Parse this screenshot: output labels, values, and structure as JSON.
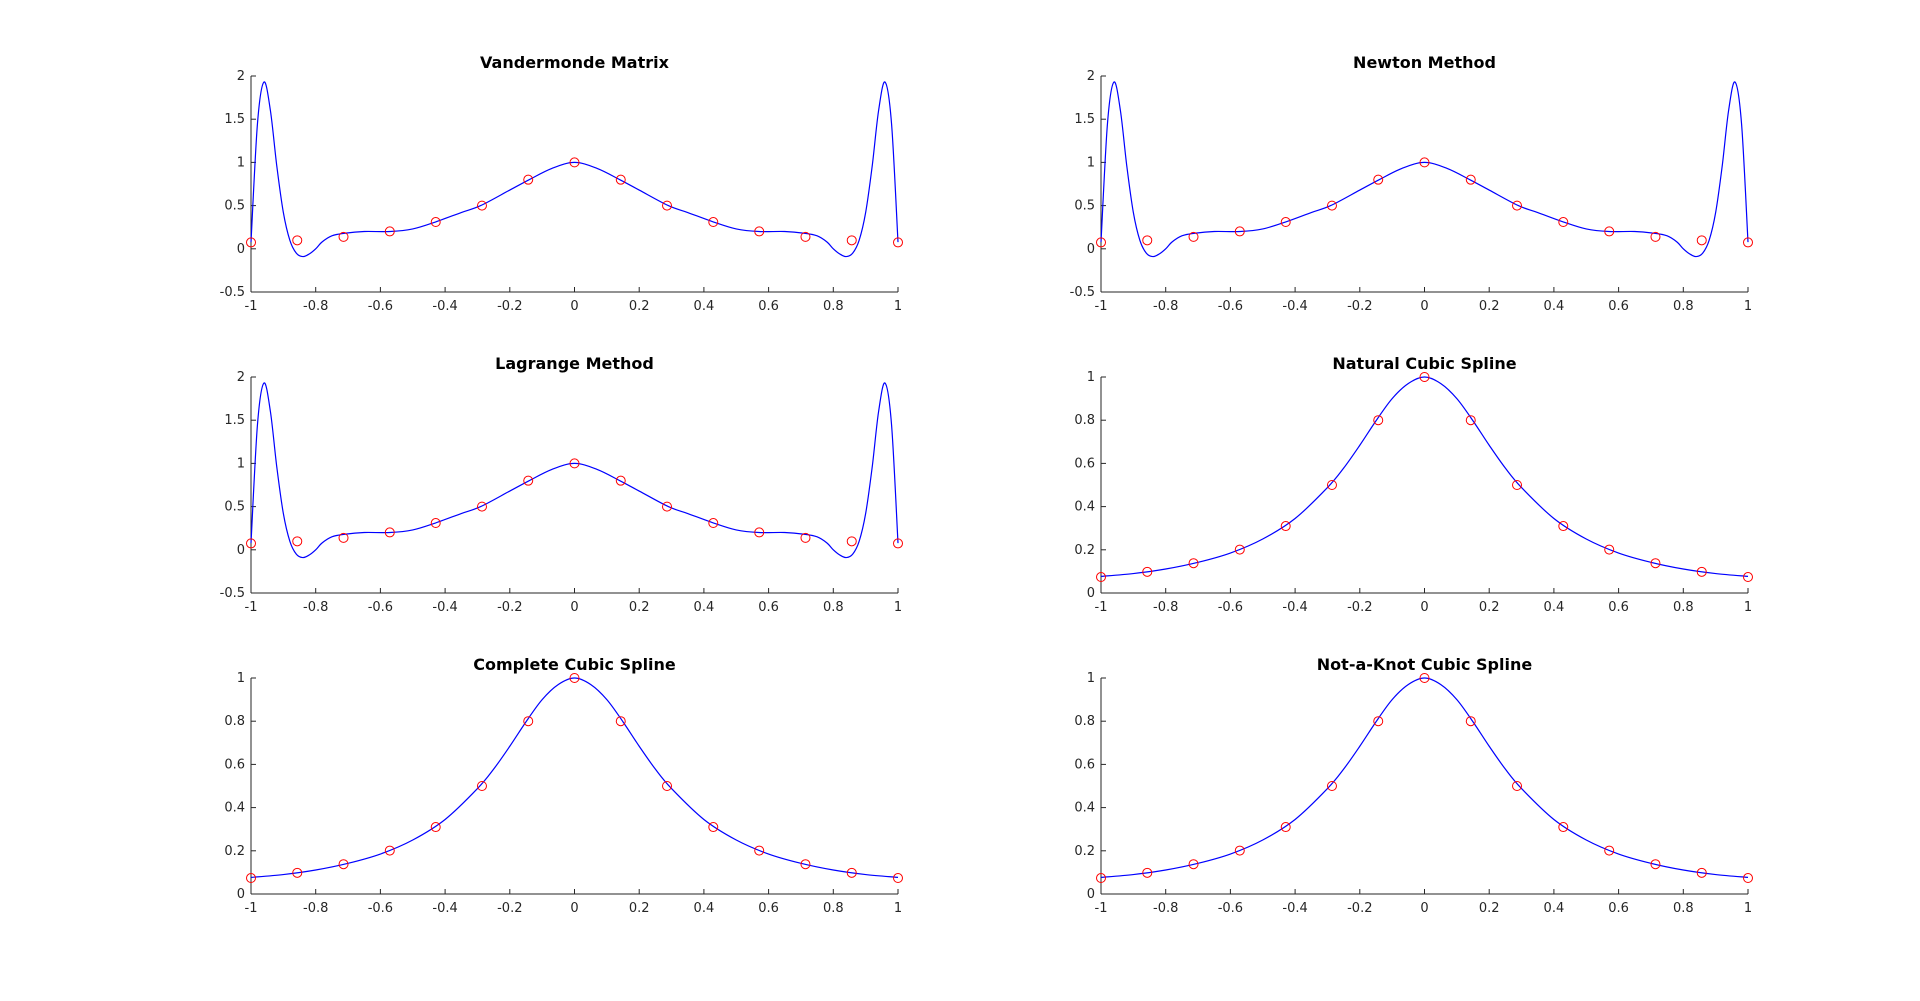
{
  "colors": {
    "curve": "#0000ff",
    "marker": "#ff0000",
    "axis": "#262626"
  },
  "chart_data": [
    {
      "type": "line",
      "title": "Vandermonde Matrix",
      "method": "poly",
      "xlim": [
        -1,
        1
      ],
      "ylim": [
        -0.5,
        2
      ],
      "xticks": [
        "-1",
        "-0.8",
        "-0.6",
        "-0.4",
        "-0.2",
        "0",
        "0.2",
        "0.4",
        "0.6",
        "0.8",
        "1"
      ],
      "yticks": [
        "-0.5",
        "0",
        "0.5",
        "1",
        "1.5",
        "2"
      ],
      "series": [
        {
          "style": "line",
          "x": [
            -1,
            -0.98,
            -0.96,
            -0.94,
            -0.92,
            -0.9,
            -0.88,
            -0.86,
            -0.84,
            -0.82,
            -0.8,
            -0.78,
            -0.75,
            -0.71,
            -0.65,
            -0.57,
            -0.5,
            -0.43,
            -0.35,
            -0.29,
            -0.2,
            -0.14,
            -0.07,
            0,
            0.07,
            0.14,
            0.2,
            0.29,
            0.35,
            0.43,
            0.5,
            0.57,
            0.65,
            0.71,
            0.75,
            0.78,
            0.8,
            0.82,
            0.84,
            0.86,
            0.88,
            0.9,
            0.92,
            0.94,
            0.96,
            0.98,
            1
          ],
          "y": [
            0.077,
            1.45,
            1.93,
            1.6,
            0.95,
            0.42,
            0.1,
            -0.05,
            -0.09,
            -0.06,
            0.0,
            0.08,
            0.15,
            0.18,
            0.2,
            0.2,
            0.23,
            0.31,
            0.42,
            0.5,
            0.68,
            0.8,
            0.93,
            1.0,
            0.93,
            0.8,
            0.68,
            0.5,
            0.42,
            0.31,
            0.23,
            0.2,
            0.2,
            0.18,
            0.15,
            0.08,
            0.0,
            -0.06,
            -0.09,
            -0.05,
            0.1,
            0.42,
            0.95,
            1.6,
            1.93,
            1.45,
            0.077
          ]
        },
        {
          "style": "markers",
          "x": [
            -1,
            -0.857,
            -0.714,
            -0.571,
            -0.429,
            -0.286,
            -0.143,
            0,
            0.143,
            0.286,
            0.429,
            0.571,
            0.714,
            0.857,
            1
          ],
          "y": [
            0.074,
            0.098,
            0.138,
            0.201,
            0.31,
            0.5,
            0.8,
            1.0,
            0.8,
            0.5,
            0.31,
            0.201,
            0.138,
            0.098,
            0.074
          ]
        }
      ]
    },
    {
      "type": "line",
      "title": "Newton Method",
      "method": "poly",
      "xlim": [
        -1,
        1
      ],
      "ylim": [
        -0.5,
        2
      ],
      "xticks": [
        "-1",
        "-0.8",
        "-0.6",
        "-0.4",
        "-0.2",
        "0",
        "0.2",
        "0.4",
        "0.6",
        "0.8",
        "1"
      ],
      "yticks": [
        "-0.5",
        "0",
        "0.5",
        "1",
        "1.5",
        "2"
      ],
      "series": [
        {
          "style": "line",
          "x": [
            -1,
            -0.98,
            -0.96,
            -0.94,
            -0.92,
            -0.9,
            -0.88,
            -0.86,
            -0.84,
            -0.82,
            -0.8,
            -0.78,
            -0.75,
            -0.71,
            -0.65,
            -0.57,
            -0.5,
            -0.43,
            -0.35,
            -0.29,
            -0.2,
            -0.14,
            -0.07,
            0,
            0.07,
            0.14,
            0.2,
            0.29,
            0.35,
            0.43,
            0.5,
            0.57,
            0.65,
            0.71,
            0.75,
            0.78,
            0.8,
            0.82,
            0.84,
            0.86,
            0.88,
            0.9,
            0.92,
            0.94,
            0.96,
            0.98,
            1
          ],
          "y": [
            0.077,
            1.45,
            1.93,
            1.6,
            0.95,
            0.42,
            0.1,
            -0.05,
            -0.09,
            -0.06,
            0.0,
            0.08,
            0.15,
            0.18,
            0.2,
            0.2,
            0.23,
            0.31,
            0.42,
            0.5,
            0.68,
            0.8,
            0.93,
            1.0,
            0.93,
            0.8,
            0.68,
            0.5,
            0.42,
            0.31,
            0.23,
            0.2,
            0.2,
            0.18,
            0.15,
            0.08,
            0.0,
            -0.06,
            -0.09,
            -0.05,
            0.1,
            0.42,
            0.95,
            1.6,
            1.93,
            1.45,
            0.077
          ]
        },
        {
          "style": "markers",
          "x": [
            -1,
            -0.857,
            -0.714,
            -0.571,
            -0.429,
            -0.286,
            -0.143,
            0,
            0.143,
            0.286,
            0.429,
            0.571,
            0.714,
            0.857,
            1
          ],
          "y": [
            0.074,
            0.098,
            0.138,
            0.201,
            0.31,
            0.5,
            0.8,
            1.0,
            0.8,
            0.5,
            0.31,
            0.201,
            0.138,
            0.098,
            0.074
          ]
        }
      ]
    },
    {
      "type": "line",
      "title": "Lagrange Method",
      "method": "poly",
      "xlim": [
        -1,
        1
      ],
      "ylim": [
        -0.5,
        2
      ],
      "xticks": [
        "-1",
        "-0.8",
        "-0.6",
        "-0.4",
        "-0.2",
        "0",
        "0.2",
        "0.4",
        "0.6",
        "0.8",
        "1"
      ],
      "yticks": [
        "-0.5",
        "0",
        "0.5",
        "1",
        "1.5",
        "2"
      ],
      "series": [
        {
          "style": "line",
          "x": [
            -1,
            -0.98,
            -0.96,
            -0.94,
            -0.92,
            -0.9,
            -0.88,
            -0.86,
            -0.84,
            -0.82,
            -0.8,
            -0.78,
            -0.75,
            -0.71,
            -0.65,
            -0.57,
            -0.5,
            -0.43,
            -0.35,
            -0.29,
            -0.2,
            -0.14,
            -0.07,
            0,
            0.07,
            0.14,
            0.2,
            0.29,
            0.35,
            0.43,
            0.5,
            0.57,
            0.65,
            0.71,
            0.75,
            0.78,
            0.8,
            0.82,
            0.84,
            0.86,
            0.88,
            0.9,
            0.92,
            0.94,
            0.96,
            0.98,
            1
          ],
          "y": [
            0.077,
            1.45,
            1.93,
            1.6,
            0.95,
            0.42,
            0.1,
            -0.05,
            -0.09,
            -0.06,
            0.0,
            0.08,
            0.15,
            0.18,
            0.2,
            0.2,
            0.23,
            0.31,
            0.42,
            0.5,
            0.68,
            0.8,
            0.93,
            1.0,
            0.93,
            0.8,
            0.68,
            0.5,
            0.42,
            0.31,
            0.23,
            0.2,
            0.2,
            0.18,
            0.15,
            0.08,
            0.0,
            -0.06,
            -0.09,
            -0.05,
            0.1,
            0.42,
            0.95,
            1.6,
            1.93,
            1.45,
            0.077
          ]
        },
        {
          "style": "markers",
          "x": [
            -1,
            -0.857,
            -0.714,
            -0.571,
            -0.429,
            -0.286,
            -0.143,
            0,
            0.143,
            0.286,
            0.429,
            0.571,
            0.714,
            0.857,
            1
          ],
          "y": [
            0.074,
            0.098,
            0.138,
            0.201,
            0.31,
            0.5,
            0.8,
            1.0,
            0.8,
            0.5,
            0.31,
            0.201,
            0.138,
            0.098,
            0.074
          ]
        }
      ]
    },
    {
      "type": "line",
      "title": "Natural Cubic Spline",
      "method": "spline",
      "xlim": [
        -1,
        1
      ],
      "ylim": [
        0,
        1
      ],
      "xticks": [
        "-1",
        "-0.8",
        "-0.6",
        "-0.4",
        "-0.2",
        "0",
        "0.2",
        "0.4",
        "0.6",
        "0.8",
        "1"
      ],
      "yticks": [
        "0",
        "0.2",
        "0.4",
        "0.6",
        "0.8",
        "1"
      ],
      "series": [
        {
          "style": "line",
          "x": [
            -1,
            -0.9,
            -0.8,
            -0.7,
            -0.6,
            -0.5,
            -0.4,
            -0.3,
            -0.25,
            -0.2,
            -0.15,
            -0.1,
            -0.05,
            0,
            0.05,
            0.1,
            0.15,
            0.2,
            0.25,
            0.3,
            0.4,
            0.5,
            0.6,
            0.7,
            0.8,
            0.9,
            1
          ],
          "y": [
            0.077,
            0.09,
            0.111,
            0.142,
            0.185,
            0.25,
            0.345,
            0.488,
            0.578,
            0.684,
            0.797,
            0.9,
            0.97,
            1.0,
            0.97,
            0.9,
            0.797,
            0.684,
            0.578,
            0.488,
            0.345,
            0.25,
            0.185,
            0.142,
            0.111,
            0.09,
            0.077
          ]
        },
        {
          "style": "markers",
          "x": [
            -1,
            -0.857,
            -0.714,
            -0.571,
            -0.429,
            -0.286,
            -0.143,
            0,
            0.143,
            0.286,
            0.429,
            0.571,
            0.714,
            0.857,
            1
          ],
          "y": [
            0.074,
            0.098,
            0.138,
            0.201,
            0.31,
            0.5,
            0.8,
            1.0,
            0.8,
            0.5,
            0.31,
            0.201,
            0.138,
            0.098,
            0.074
          ]
        }
      ]
    },
    {
      "type": "line",
      "title": "Complete Cubic Spline",
      "method": "spline",
      "xlim": [
        -1,
        1
      ],
      "ylim": [
        0,
        1
      ],
      "xticks": [
        "-1",
        "-0.8",
        "-0.6",
        "-0.4",
        "-0.2",
        "0",
        "0.2",
        "0.4",
        "0.6",
        "0.8",
        "1"
      ],
      "yticks": [
        "0",
        "0.2",
        "0.4",
        "0.6",
        "0.8",
        "1"
      ],
      "series": [
        {
          "style": "line",
          "x": [
            -1,
            -0.9,
            -0.8,
            -0.7,
            -0.6,
            -0.5,
            -0.4,
            -0.3,
            -0.25,
            -0.2,
            -0.15,
            -0.1,
            -0.05,
            0,
            0.05,
            0.1,
            0.15,
            0.2,
            0.25,
            0.3,
            0.4,
            0.5,
            0.6,
            0.7,
            0.8,
            0.9,
            1
          ],
          "y": [
            0.077,
            0.09,
            0.111,
            0.142,
            0.185,
            0.25,
            0.345,
            0.488,
            0.578,
            0.684,
            0.797,
            0.9,
            0.97,
            1.0,
            0.97,
            0.9,
            0.797,
            0.684,
            0.578,
            0.488,
            0.345,
            0.25,
            0.185,
            0.142,
            0.111,
            0.09,
            0.077
          ]
        },
        {
          "style": "markers",
          "x": [
            -1,
            -0.857,
            -0.714,
            -0.571,
            -0.429,
            -0.286,
            -0.143,
            0,
            0.143,
            0.286,
            0.429,
            0.571,
            0.714,
            0.857,
            1
          ],
          "y": [
            0.074,
            0.098,
            0.138,
            0.201,
            0.31,
            0.5,
            0.8,
            1.0,
            0.8,
            0.5,
            0.31,
            0.201,
            0.138,
            0.098,
            0.074
          ]
        }
      ]
    },
    {
      "type": "line",
      "title": "Not-a-Knot Cubic Spline",
      "method": "spline",
      "xlim": [
        -1,
        1
      ],
      "ylim": [
        0,
        1
      ],
      "xticks": [
        "-1",
        "-0.8",
        "-0.6",
        "-0.4",
        "-0.2",
        "0",
        "0.2",
        "0.4",
        "0.6",
        "0.8",
        "1"
      ],
      "yticks": [
        "0",
        "0.2",
        "0.4",
        "0.6",
        "0.8",
        "1"
      ],
      "series": [
        {
          "style": "line",
          "x": [
            -1,
            -0.9,
            -0.8,
            -0.7,
            -0.6,
            -0.5,
            -0.4,
            -0.3,
            -0.25,
            -0.2,
            -0.15,
            -0.1,
            -0.05,
            0,
            0.05,
            0.1,
            0.15,
            0.2,
            0.25,
            0.3,
            0.4,
            0.5,
            0.6,
            0.7,
            0.8,
            0.9,
            1
          ],
          "y": [
            0.077,
            0.09,
            0.111,
            0.142,
            0.185,
            0.25,
            0.345,
            0.488,
            0.578,
            0.684,
            0.797,
            0.9,
            0.97,
            1.0,
            0.97,
            0.9,
            0.797,
            0.684,
            0.578,
            0.488,
            0.345,
            0.25,
            0.185,
            0.142,
            0.111,
            0.09,
            0.077
          ]
        },
        {
          "style": "markers",
          "x": [
            -1,
            -0.857,
            -0.714,
            -0.571,
            -0.429,
            -0.286,
            -0.143,
            0,
            0.143,
            0.286,
            0.429,
            0.571,
            0.714,
            0.857,
            1
          ],
          "y": [
            0.074,
            0.098,
            0.138,
            0.201,
            0.31,
            0.5,
            0.8,
            1.0,
            0.8,
            0.5,
            0.31,
            0.201,
            0.138,
            0.098,
            0.074
          ]
        }
      ]
    }
  ]
}
